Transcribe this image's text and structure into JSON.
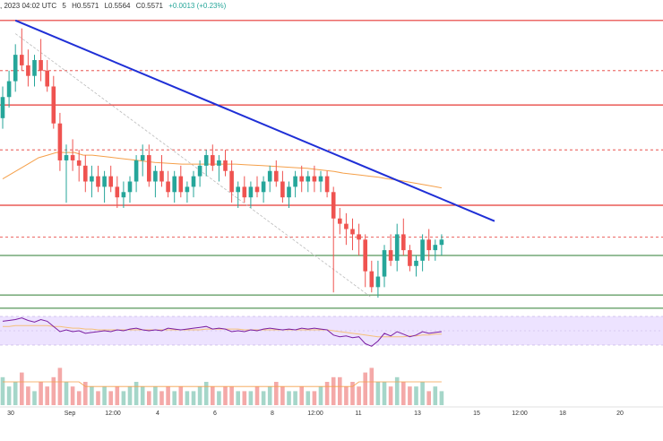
{
  "header": {
    "datetime": ", 2023 04:02 UTC",
    "open_fragment": "5",
    "high": "H0.5571",
    "low": "L0.5564",
    "close": "C0.5571",
    "change": "+0.0013 (+0.23%)"
  },
  "colors": {
    "bull": "#26a69a",
    "bear": "#ef5350",
    "trendline": "#1f2fd6",
    "resistance": "#e53935",
    "support": "#2e7d32",
    "ma": "#f5a04a",
    "rsi_line": "#7b1fa2",
    "rsi_ma": "#f5c07a",
    "rsi_band": "#ede3ff",
    "projection": "#bbbbbb"
  },
  "chart_data": {
    "type": "candlestick",
    "x_tick_labels": [
      "30",
      "Sep",
      "12:00",
      "4",
      "6",
      "8",
      "12:00",
      "11",
      "13",
      "15",
      "12:00",
      "18",
      "20"
    ],
    "ylim": [
      0.53,
      0.585
    ],
    "candles": [
      [
        0.565,
        0.571,
        0.563,
        0.569
      ],
      [
        0.569,
        0.574,
        0.567,
        0.572
      ],
      [
        0.572,
        0.579,
        0.57,
        0.577
      ],
      [
        0.577,
        0.582,
        0.574,
        0.575
      ],
      [
        0.575,
        0.578,
        0.571,
        0.573
      ],
      [
        0.573,
        0.577,
        0.571,
        0.576
      ],
      [
        0.576,
        0.58,
        0.572,
        0.574
      ],
      [
        0.574,
        0.576,
        0.57,
        0.571
      ],
      [
        0.571,
        0.573,
        0.563,
        0.564
      ],
      [
        0.564,
        0.566,
        0.555,
        0.557
      ],
      [
        0.557,
        0.56,
        0.549,
        0.558
      ],
      [
        0.558,
        0.561,
        0.555,
        0.557
      ],
      [
        0.557,
        0.559,
        0.553,
        0.556
      ],
      [
        0.556,
        0.558,
        0.551,
        0.553
      ],
      [
        0.553,
        0.556,
        0.55,
        0.554
      ],
      [
        0.554,
        0.556,
        0.551,
        0.552
      ],
      [
        0.552,
        0.555,
        0.549,
        0.554
      ],
      [
        0.554,
        0.556,
        0.551,
        0.552
      ],
      [
        0.552,
        0.554,
        0.548,
        0.55
      ],
      [
        0.55,
        0.553,
        0.548,
        0.551
      ],
      [
        0.551,
        0.554,
        0.549,
        0.553
      ],
      [
        0.553,
        0.558,
        0.551,
        0.557
      ],
      [
        0.557,
        0.56,
        0.554,
        0.558
      ],
      [
        0.558,
        0.56,
        0.552,
        0.553
      ],
      [
        0.553,
        0.556,
        0.55,
        0.555
      ],
      [
        0.555,
        0.558,
        0.552,
        0.553
      ],
      [
        0.553,
        0.555,
        0.55,
        0.551
      ],
      [
        0.551,
        0.555,
        0.549,
        0.554
      ],
      [
        0.554,
        0.556,
        0.55,
        0.551
      ],
      [
        0.551,
        0.553,
        0.549,
        0.552
      ],
      [
        0.552,
        0.555,
        0.55,
        0.554
      ],
      [
        0.554,
        0.557,
        0.552,
        0.556
      ],
      [
        0.556,
        0.559,
        0.554,
        0.558
      ],
      [
        0.558,
        0.56,
        0.555,
        0.556
      ],
      [
        0.556,
        0.558,
        0.553,
        0.557
      ],
      [
        0.557,
        0.559,
        0.554,
        0.555
      ],
      [
        0.555,
        0.557,
        0.549,
        0.551
      ],
      [
        0.551,
        0.553,
        0.548,
        0.552
      ],
      [
        0.552,
        0.554,
        0.549,
        0.55
      ],
      [
        0.55,
        0.553,
        0.548,
        0.552
      ],
      [
        0.552,
        0.554,
        0.55,
        0.551
      ],
      [
        0.551,
        0.554,
        0.549,
        0.553
      ],
      [
        0.553,
        0.556,
        0.551,
        0.555
      ],
      [
        0.555,
        0.557,
        0.552,
        0.553
      ],
      [
        0.553,
        0.555,
        0.549,
        0.55
      ],
      [
        0.55,
        0.553,
        0.548,
        0.552
      ],
      [
        0.552,
        0.555,
        0.55,
        0.554
      ],
      [
        0.554,
        0.556,
        0.551,
        0.553
      ],
      [
        0.553,
        0.555,
        0.551,
        0.554
      ],
      [
        0.554,
        0.556,
        0.551,
        0.553
      ],
      [
        0.553,
        0.555,
        0.551,
        0.554
      ],
      [
        0.554,
        0.555,
        0.55,
        0.551
      ],
      [
        0.551,
        0.552,
        0.532,
        0.546
      ],
      [
        0.546,
        0.548,
        0.543,
        0.545
      ],
      [
        0.545,
        0.547,
        0.541,
        0.544
      ],
      [
        0.544,
        0.546,
        0.54,
        0.543
      ],
      [
        0.543,
        0.545,
        0.539,
        0.542
      ],
      [
        0.542,
        0.543,
        0.533,
        0.536
      ],
      [
        0.536,
        0.538,
        0.532,
        0.533
      ],
      [
        0.533,
        0.538,
        0.531,
        0.535
      ],
      [
        0.535,
        0.541,
        0.533,
        0.54
      ],
      [
        0.54,
        0.543,
        0.537,
        0.538
      ],
      [
        0.538,
        0.545,
        0.536,
        0.543
      ],
      [
        0.543,
        0.546,
        0.539,
        0.54
      ],
      [
        0.54,
        0.541,
        0.536,
        0.537
      ],
      [
        0.537,
        0.539,
        0.535,
        0.538
      ],
      [
        0.538,
        0.543,
        0.536,
        0.542
      ],
      [
        0.542,
        0.544,
        0.538,
        0.54
      ],
      [
        0.54,
        0.542,
        0.538,
        0.541
      ],
      [
        0.541,
        0.543,
        0.539,
        0.542
      ]
    ],
    "volumes": [
      6,
      4,
      5,
      7,
      4,
      3,
      5,
      4,
      6,
      8,
      5,
      4,
      3,
      5,
      4,
      3,
      4,
      3,
      4,
      3,
      4,
      5,
      4,
      3,
      4,
      3,
      4,
      3,
      4,
      3,
      3,
      4,
      5,
      4,
      3,
      4,
      4,
      3,
      3,
      3,
      4,
      3,
      4,
      5,
      4,
      3,
      3,
      4,
      3,
      3,
      4,
      5,
      6,
      6,
      4,
      5,
      4,
      7,
      8,
      5,
      5,
      4,
      6,
      5,
      4,
      4,
      5,
      3,
      4,
      3
    ],
    "volume_ma": [
      5,
      5,
      5,
      5,
      5,
      5,
      5,
      5,
      5,
      5,
      5,
      5,
      5,
      4,
      4,
      4,
      4,
      4,
      4,
      4,
      4,
      4,
      4,
      4,
      4,
      4,
      4,
      4,
      4,
      4,
      4,
      4,
      4,
      4,
      4,
      4,
      4,
      4,
      4,
      4,
      4,
      4,
      4,
      4,
      4,
      4,
      4,
      4,
      4,
      4,
      4,
      4,
      4,
      4,
      4,
      4,
      5,
      5,
      5,
      5,
      5,
      5,
      5,
      5,
      5,
      5,
      5,
      5,
      5,
      5
    ],
    "ma_line": [
      0.5535,
      0.5545,
      0.5555,
      0.5565,
      0.5575,
      0.558,
      0.5585,
      0.5585,
      0.5585,
      0.558,
      0.558,
      0.5578,
      0.5576,
      0.5574,
      0.5572,
      0.557,
      0.5568,
      0.5566,
      0.5565,
      0.5564,
      0.5563,
      0.5563,
      0.5563,
      0.5563,
      0.5563,
      0.5563,
      0.5563,
      0.5562,
      0.5561,
      0.556,
      0.5559,
      0.5558,
      0.5557,
      0.5556,
      0.5555,
      0.5553,
      0.5551,
      0.5549,
      0.5546,
      0.5544,
      0.5542,
      0.554,
      0.5538,
      0.5535,
      0.5533,
      0.553,
      0.5527,
      0.5524,
      0.5521,
      0.5518
    ],
    "rsi": [
      56,
      57,
      58,
      60,
      57,
      55,
      58,
      56,
      50,
      44,
      46,
      44,
      45,
      42,
      43,
      44,
      45,
      44,
      46,
      45,
      47,
      48,
      46,
      45,
      46,
      45,
      48,
      47,
      46,
      47,
      48,
      49,
      50,
      47,
      48,
      47,
      44,
      45,
      44,
      46,
      45,
      47,
      48,
      47,
      46,
      47,
      46,
      48,
      47,
      48,
      47,
      46,
      40,
      38,
      39,
      37,
      38,
      30,
      27,
      33,
      42,
      39,
      44,
      41,
      38,
      40,
      44,
      42,
      43,
      44
    ],
    "rsi_ma": [
      50,
      50,
      51,
      51,
      51,
      51,
      51,
      51,
      50,
      50,
      49,
      48,
      48,
      47,
      47,
      46,
      46,
      46,
      46,
      46,
      46,
      46,
      46,
      46,
      46,
      46,
      46,
      46,
      46,
      46,
      46,
      46,
      47,
      47,
      47,
      47,
      47,
      47,
      46,
      46,
      46,
      46,
      46,
      46,
      46,
      46,
      46,
      46,
      46,
      46,
      46,
      46,
      45,
      44,
      43,
      42,
      41,
      40,
      39,
      38,
      38,
      38,
      38,
      38,
      39,
      39,
      40,
      40,
      41,
      41
    ],
    "resistance_levels": [
      0.5835,
      0.5675,
      0.5485
    ],
    "dashed_resistance_levels": [
      0.574,
      0.559,
      0.5425
    ],
    "support_levels": [
      0.539,
      0.5315,
      0.529
    ]
  }
}
